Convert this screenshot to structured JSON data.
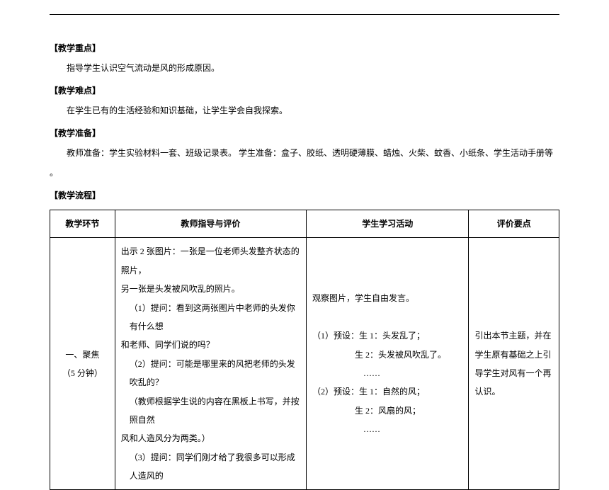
{
  "top_rule": true,
  "sections": [
    {
      "key": "focus",
      "header": "【教学重点】",
      "body": "指导学生认识空气流动是风的形成原因。"
    },
    {
      "key": "difficulty",
      "header": "【教学难点】",
      "body": "在学生已有的生活经验和知识基础，让学生学会自我探索。"
    },
    {
      "key": "prep",
      "header": "【教学准备】",
      "body": "教师准备：学生实验材料一套、班级记录表。  学生准备：盒子、胶纸、透明硬薄膜、蜡烛、火柴、蚊香、小纸条、学生活动手册等",
      "trailing": "。"
    },
    {
      "key": "flow",
      "header": "【教学流程】"
    }
  ],
  "table": {
    "headers": {
      "stage": "教学环节",
      "teacher": "教师指导与评价",
      "student": "学生学习活动",
      "eval": "评价要点"
    },
    "row": {
      "stage_line1": "一、聚焦",
      "stage_line2": "（5 分钟）",
      "teacher_lines": [
        "出示 2 张图片：一张是一位老师头发整齐状态的照片，",
        "另一张是头发被风吹乱的照片。",
        "（1）提问：看到这两张图片中老师的头发你有什么想",
        "和老师、同学们说的吗？",
        "（2）提问：可能是哪里来的风把老师的头发吹乱的？",
        "（教师根据学生说的内容在黑板上书写，并按照自然",
        "风和人造风分为两类。）",
        "（3）提问：同学们刚才给了我很多可以形成人造风的"
      ],
      "student_lines": [
        {
          "text": "观察图片，学生自由发言。",
          "class": ""
        },
        {
          "text": "",
          "class": ""
        },
        {
          "text": "（1）预设：生 1：头发乱了；",
          "class": ""
        },
        {
          "text": "生 2：头发被风吹乱了。",
          "class": "indent2"
        },
        {
          "text": "……",
          "class": "indent3"
        },
        {
          "text": "（2）预设：生 1：自然的风；",
          "class": ""
        },
        {
          "text": "生 2：风扇的风；",
          "class": "indent2"
        },
        {
          "text": "……",
          "class": "indent3"
        }
      ],
      "eval_lines": [
        "",
        "",
        "引出本节主题，并在",
        "学生原有基础之上引",
        "导学生对风有一个再",
        "认识。",
        "",
        ""
      ]
    }
  }
}
